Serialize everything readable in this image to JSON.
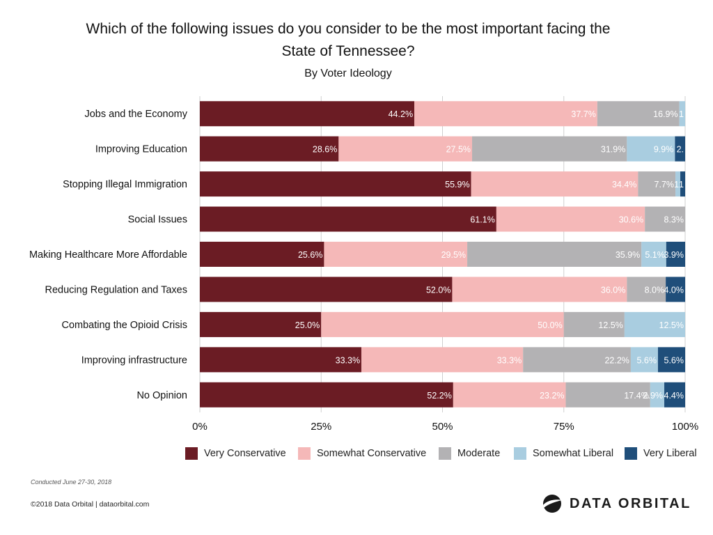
{
  "chart_data": {
    "type": "bar",
    "orientation": "horizontal",
    "stacked": true,
    "title": "Which of the following issues do you consider to be the most important facing the State of Tennessee?",
    "subtitle": "By Voter Ideology",
    "categories": [
      "Jobs and the Economy",
      "Improving Education",
      "Stopping Illegal Immigration",
      "Social Issues",
      "Making Healthcare More Affordable",
      "Reducing Regulation and Taxes",
      "Combating the Opioid Crisis",
      "Improving infrastructure",
      "No Opinion"
    ],
    "series": [
      {
        "name": "Very Conservative",
        "color": "#6b1c24",
        "label_color": "#ffffff",
        "values": [
          44.2,
          28.6,
          55.9,
          61.1,
          25.6,
          52.0,
          25.0,
          33.3,
          52.2
        ]
      },
      {
        "name": "Somewhat Conservative",
        "color": "#f5b8b8",
        "label_color": "#ffffff",
        "values": [
          37.7,
          27.5,
          34.4,
          30.6,
          29.5,
          36.0,
          50.0,
          33.3,
          23.2
        ]
      },
      {
        "name": "Moderate",
        "color": "#b3b2b4",
        "label_color": "#ffffff",
        "values": [
          16.9,
          31.9,
          7.7,
          8.3,
          35.9,
          8.0,
          12.5,
          22.2,
          17.4
        ]
      },
      {
        "name": "Somewhat Liberal",
        "color": "#a9cde0",
        "label_color": "#ffffff",
        "values": [
          1.3,
          9.9,
          1.0,
          0,
          5.1,
          0,
          12.5,
          5.6,
          2.9
        ]
      },
      {
        "name": "Very Liberal",
        "color": "#1f4e7a",
        "label_color": "#ffffff",
        "values": [
          0,
          2.2,
          1.0,
          0,
          3.9,
          4.0,
          0,
          5.6,
          4.4
        ]
      }
    ],
    "value_labels": [
      [
        "44.2%",
        "37.7%",
        "16.9%",
        "1",
        ""
      ],
      [
        "28.6%",
        "27.5%",
        "31.9%",
        "9.9%",
        "2."
      ],
      [
        "55.9%",
        "34.4%",
        "7.7%",
        "1",
        "1"
      ],
      [
        "61.1%",
        "30.6%",
        "8.3%",
        "",
        ""
      ],
      [
        "25.6%",
        "29.5%",
        "35.9%",
        "5.1%",
        "3.9%"
      ],
      [
        "52.0%",
        "36.0%",
        "8.0%",
        "",
        "4.0%"
      ],
      [
        "25.0%",
        "50.0%",
        "12.5%",
        "12.5%",
        ""
      ],
      [
        "33.3%",
        "33.3%",
        "22.2%",
        "5.6%",
        "5.6%"
      ],
      [
        "52.2%",
        "23.2%",
        "17.4%",
        "2.9%",
        "4.4%"
      ]
    ],
    "xlim": [
      0,
      100
    ],
    "x_ticks": [
      0,
      25,
      50,
      75,
      100
    ],
    "x_tick_labels": [
      "0%",
      "25%",
      "50%",
      "75%",
      "100%"
    ],
    "xlabel": "",
    "ylabel": "",
    "grid": true,
    "legend_position": "bottom"
  },
  "footer": {
    "note": "Conducted June 27-30, 2018",
    "copyright": "©2018 Data Orbital | dataorbital.com",
    "brand": "DATA ORBITAL"
  }
}
